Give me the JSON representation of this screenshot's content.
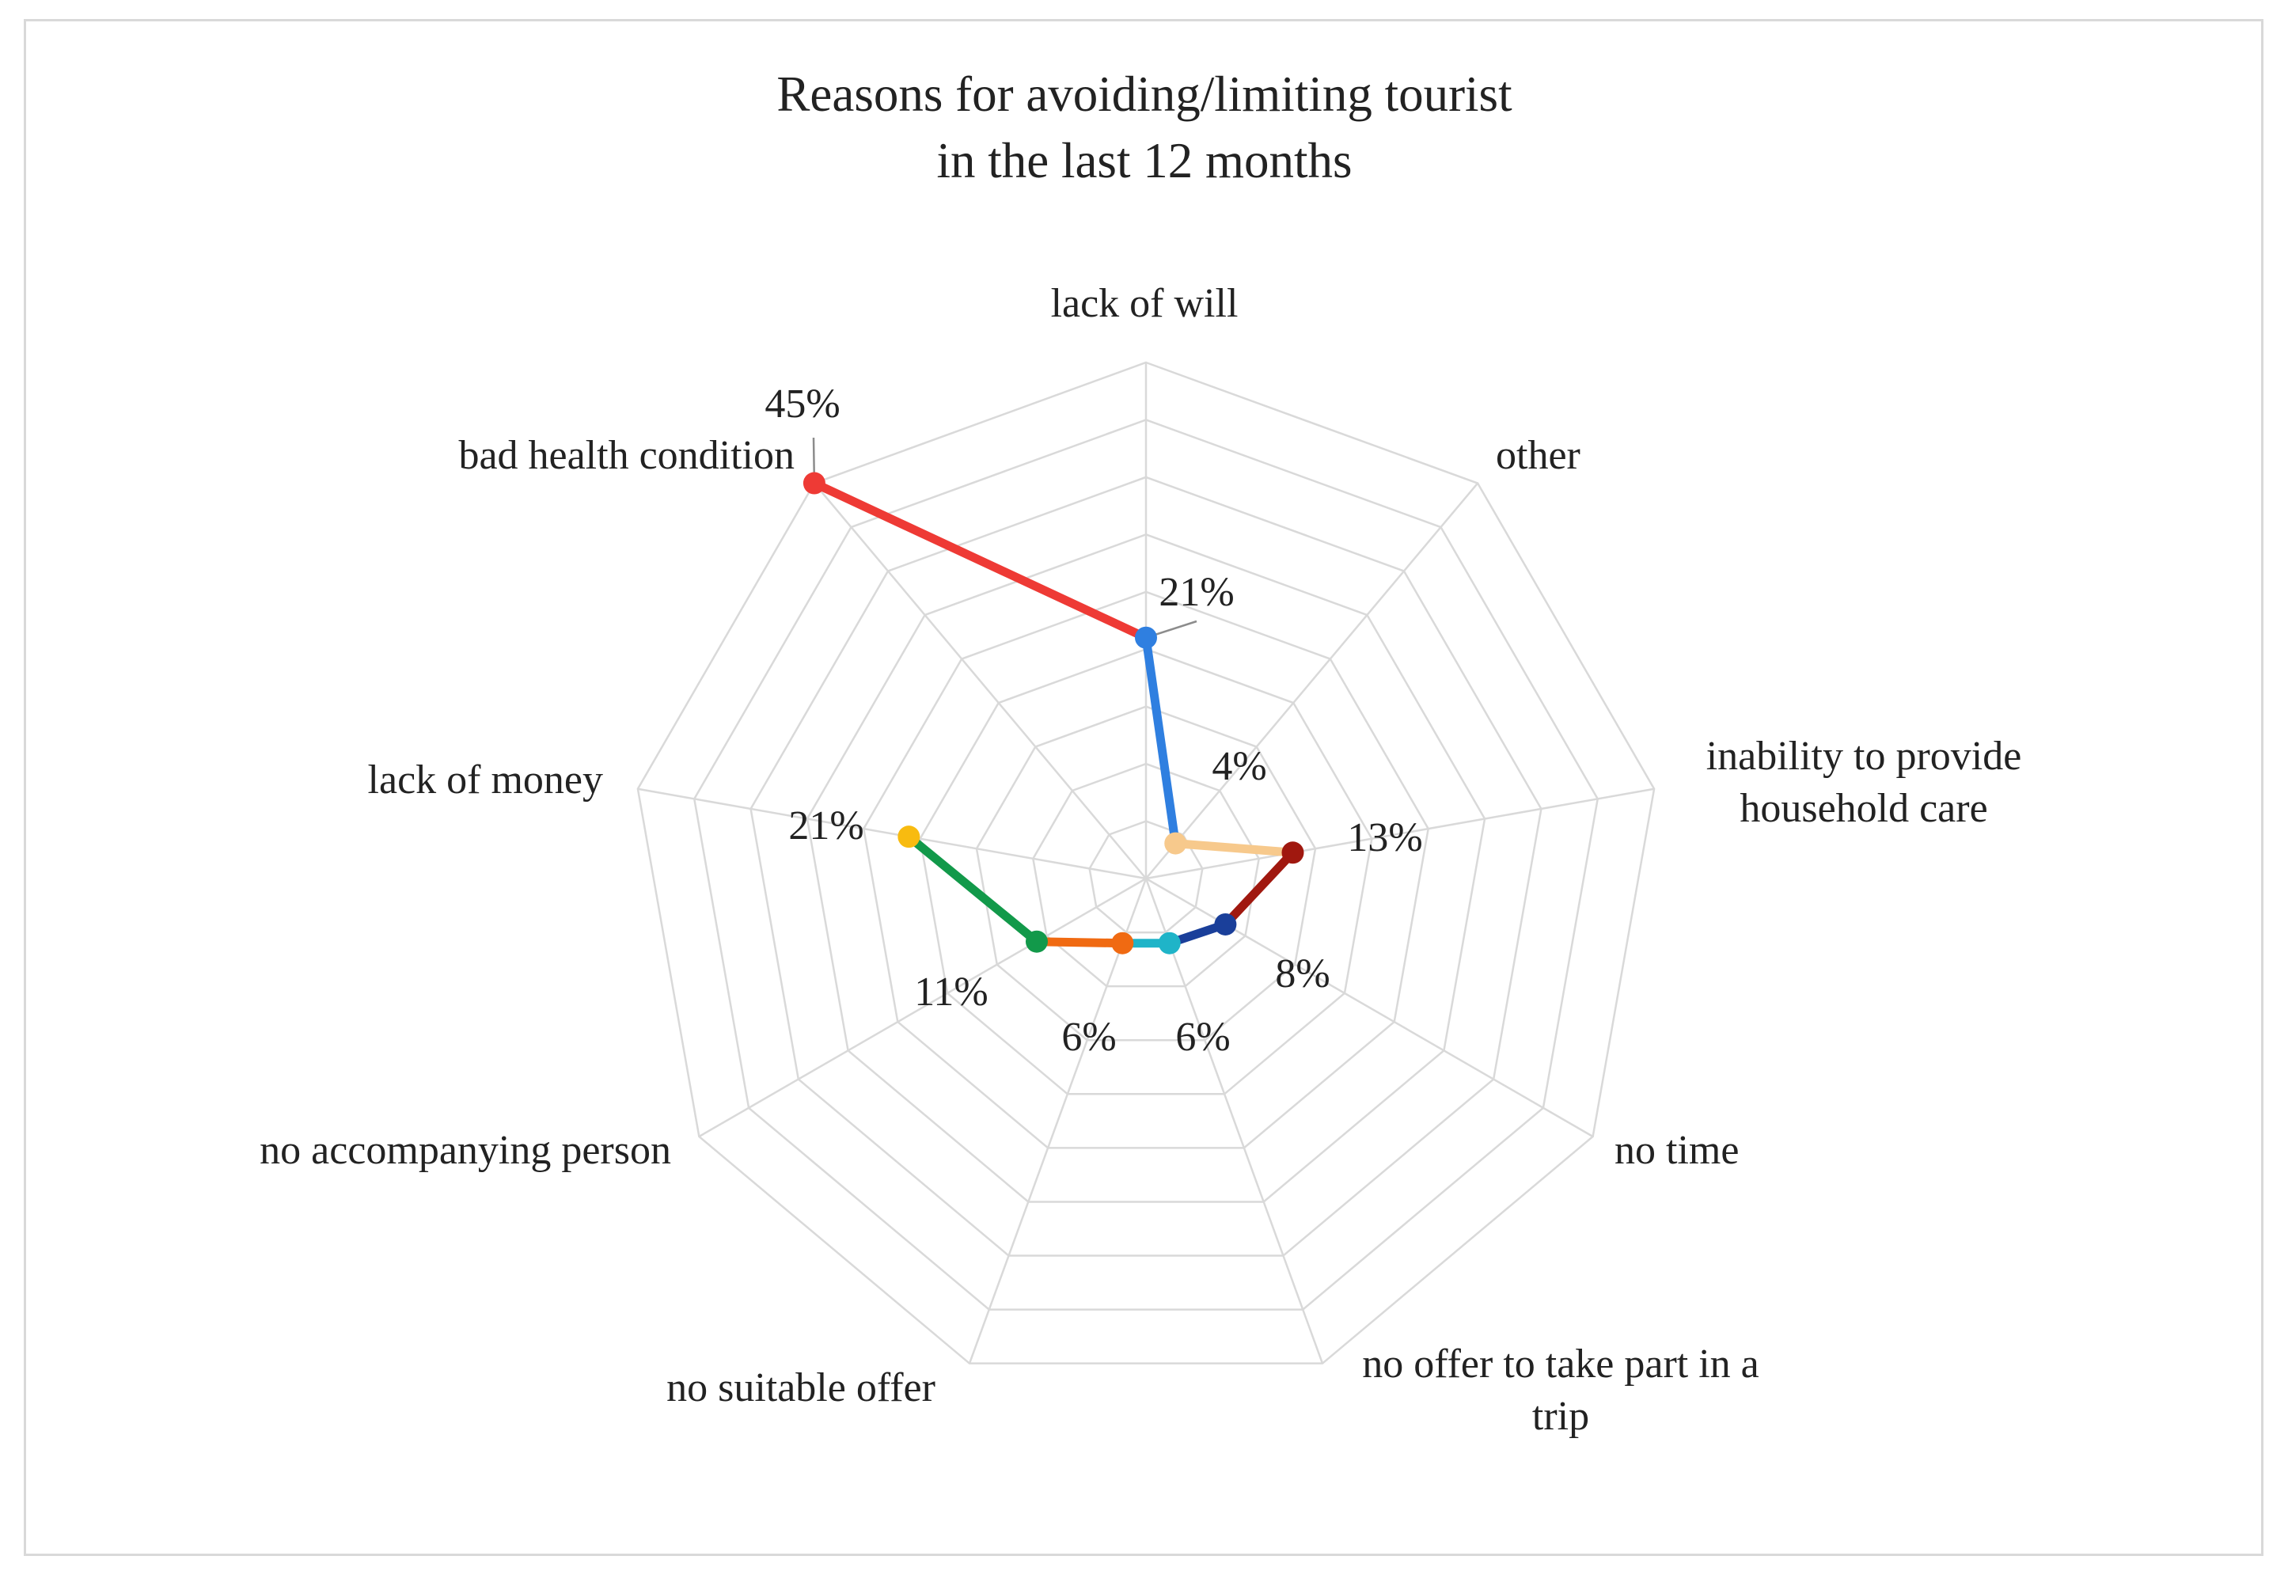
{
  "chart_data": {
    "type": "radar",
    "title_lines": [
      "Reasons for avoiding/limiting  tourist",
      "in the last 12 months"
    ],
    "categories": [
      {
        "label_lines": [
          "lack of will"
        ],
        "value": 21,
        "display": "21%",
        "color": "#2f7fe0"
      },
      {
        "label_lines": [
          "other"
        ],
        "value": 4,
        "display": "4%",
        "color": "#f7c98c"
      },
      {
        "label_lines": [
          "inability to provide",
          "household care"
        ],
        "value": 13,
        "display": "13%",
        "color": "#a0180f"
      },
      {
        "label_lines": [
          "no time"
        ],
        "value": 8,
        "display": "8%",
        "color": "#1a3f9a"
      },
      {
        "label_lines": [
          "no offer to take part in a",
          "trip"
        ],
        "value": 6,
        "display": "6%",
        "color": "#1fb4c8"
      },
      {
        "label_lines": [
          "no suitable offer"
        ],
        "value": 6,
        "display": "6%",
        "color": "#f06a12"
      },
      {
        "label_lines": [
          "no accompanying person"
        ],
        "value": 11,
        "display": "11%",
        "color": "#12994a"
      },
      {
        "label_lines": [
          "lack of money"
        ],
        "value": 21,
        "display": "21%",
        "color": "#f8bb10"
      },
      {
        "label_lines": [
          "bad health condition"
        ],
        "value": 45,
        "display": "45%",
        "color": "#ee3a35"
      }
    ],
    "range": [
      0,
      45
    ],
    "gridlines": true,
    "grid_color": "#d9d9d9",
    "legend": "none"
  }
}
